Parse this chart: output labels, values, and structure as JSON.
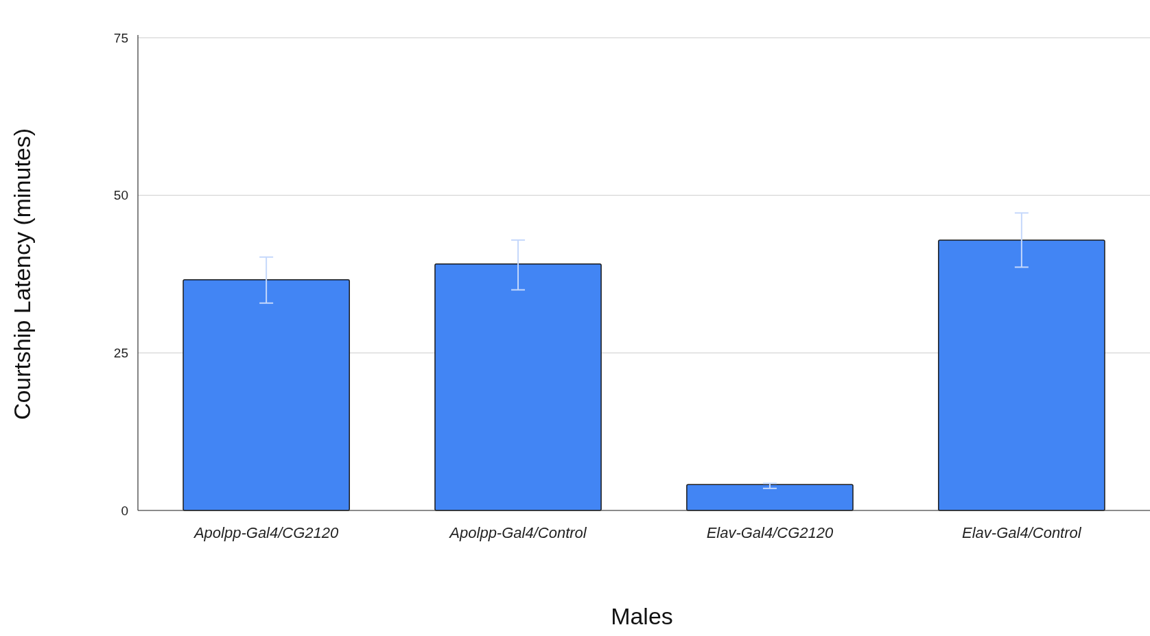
{
  "chart_data": {
    "type": "bar",
    "xlabel": "Males",
    "ylabel": "Courtship Latency (minutes)",
    "categories": [
      "Apolpp-Gal4/CG2120",
      "Apolpp-Gal4/Control",
      "Elav-Gal4/CG2120",
      "Elav-Gal4/Control"
    ],
    "values": [
      36.6,
      39.1,
      4.1,
      42.9
    ],
    "errors": [
      [
        32.9,
        40.2
      ],
      [
        35.0,
        42.9
      ],
      [
        3.5,
        4.3
      ],
      [
        38.6,
        47.2
      ]
    ],
    "color": "#4285f4",
    "ylim": [
      0,
      75
    ],
    "yticks": [
      0,
      25,
      50,
      75
    ],
    "grid": "y"
  }
}
